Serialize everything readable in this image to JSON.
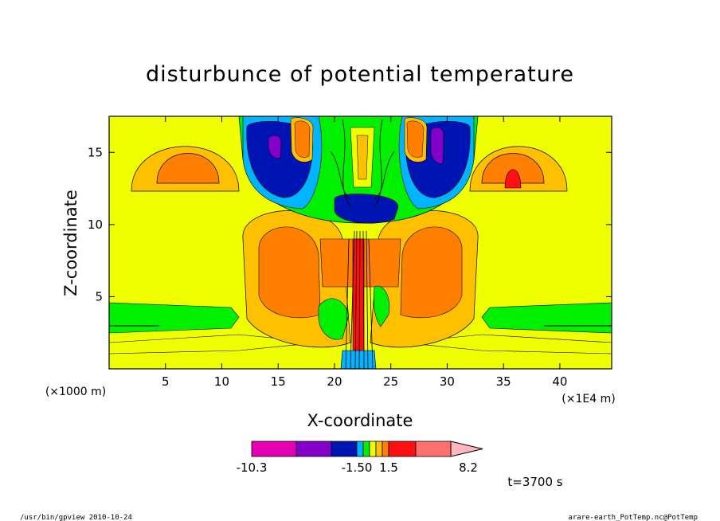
{
  "chart_data": {
    "type": "heatmap",
    "title": "disturbunce of potential temperature",
    "xlabel": "X-coordinate",
    "ylabel": "Z-coordinate",
    "x_unit": "(×1E4 m)",
    "y_unit": "(×1000 m)",
    "xlim": [
      0,
      44.6
    ],
    "ylim": [
      0,
      17.5
    ],
    "x_ticks": [
      5,
      10,
      15,
      20,
      25,
      30,
      35,
      40
    ],
    "x_tick_labels": [
      "5",
      "10",
      "15",
      "20",
      "25",
      "30",
      "35",
      "40"
    ],
    "y_ticks": [
      5,
      10,
      15
    ],
    "y_tick_labels": [
      "5",
      "10",
      "15"
    ],
    "colorbar": {
      "labels": [
        "-10.3",
        "-1.50",
        "1.5",
        "8.2"
      ],
      "colors": [
        "#e600b4",
        "#8200c8",
        "#0014b4",
        "#00b4ff",
        "#00f000",
        "#f0ff00",
        "#ffc000",
        "#ff8000",
        "#ff1010",
        "#ff7070",
        "#ffb6c1"
      ]
    },
    "background_level_color": "#f0ff00",
    "time_label": "t=3700 s"
  },
  "footer": {
    "left": "/usr/bin/gpview   2010-10-24",
    "right": "arare-earth_PotTemp.nc@PotTemp"
  }
}
